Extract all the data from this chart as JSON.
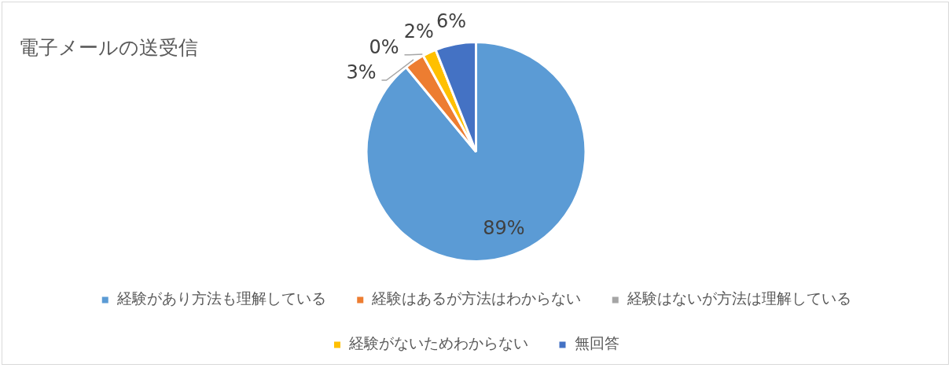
{
  "chart_data": {
    "type": "pie",
    "title": "電子メールの送受信",
    "categories": [
      "経験があり方法も理解している",
      "経験はあるが方法はわからない",
      "経験はないが方法は理解している",
      "経験がないためわからない",
      "無回答"
    ],
    "values": [
      89,
      3,
      0,
      2,
      6
    ],
    "colors": [
      "#5b9bd5",
      "#ed7d31",
      "#a5a5a5",
      "#ffc000",
      "#4472c4"
    ],
    "value_labels": [
      "89%",
      "3%",
      "0%",
      "2%",
      "6%"
    ],
    "legend": "bottom"
  }
}
